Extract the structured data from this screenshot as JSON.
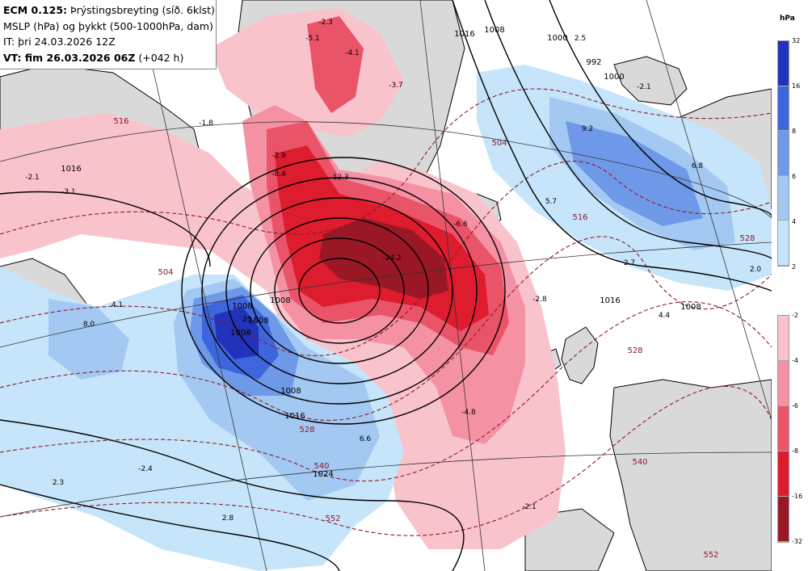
{
  "header": {
    "line1_bold": "ECM 0.125:",
    "line1_rest": " Þrýstingsbreyting (síð. 6klst)",
    "line2": "MSLP (hPa) og þykkt (500-1000hPa, dam)",
    "line3": "IT: þri 24.03.2026 12Z",
    "line4_bold": "VT: fim 26.03.2026 06Z",
    "line4_rest": " (+042 h)"
  },
  "legend": {
    "unit": "hPa",
    "rise_ticks": [
      "32",
      "16",
      "8",
      "6",
      "4",
      "2"
    ],
    "fall_ticks": [
      "-2",
      "-4",
      "-6",
      "-8",
      "-16",
      "-32"
    ],
    "rise_colors": [
      "#2233bb",
      "#3d66dd",
      "#6e99e8",
      "#a3c8f2",
      "#c6e5fa"
    ],
    "fall_colors": [
      "#f9c3cc",
      "#f492a4",
      "#ea5468",
      "#dd1c2e",
      "#9a1826"
    ]
  },
  "map_labels": {
    "isobars": [
      "1016",
      "1008",
      "1008",
      "1008",
      "1016",
      "1008",
      "1000",
      "992",
      "1016",
      "1008",
      "1008",
      "1016",
      "1024",
      "1000",
      "1008"
    ],
    "thickness": [
      "504",
      "528",
      "540",
      "552",
      "516",
      "528",
      "528",
      "540",
      "552",
      "504",
      "516"
    ],
    "tendency": [
      "-5.1",
      "-4.1",
      "-2.3",
      "-3.7",
      "-1.8",
      "-2.1",
      "-2.9",
      "-3.1",
      "-8.4",
      "-12.3",
      "-6.6",
      "-24.2",
      "-2.8",
      "-4.8",
      "-2.4",
      "-2.1",
      "8.0",
      "25.9",
      "6.6",
      "2.3",
      "2.8",
      "2.5",
      "-2.1",
      "9.2",
      "6.8",
      "5.7",
      "2.7",
      "2.0",
      "4.4",
      "4.1"
    ]
  }
}
